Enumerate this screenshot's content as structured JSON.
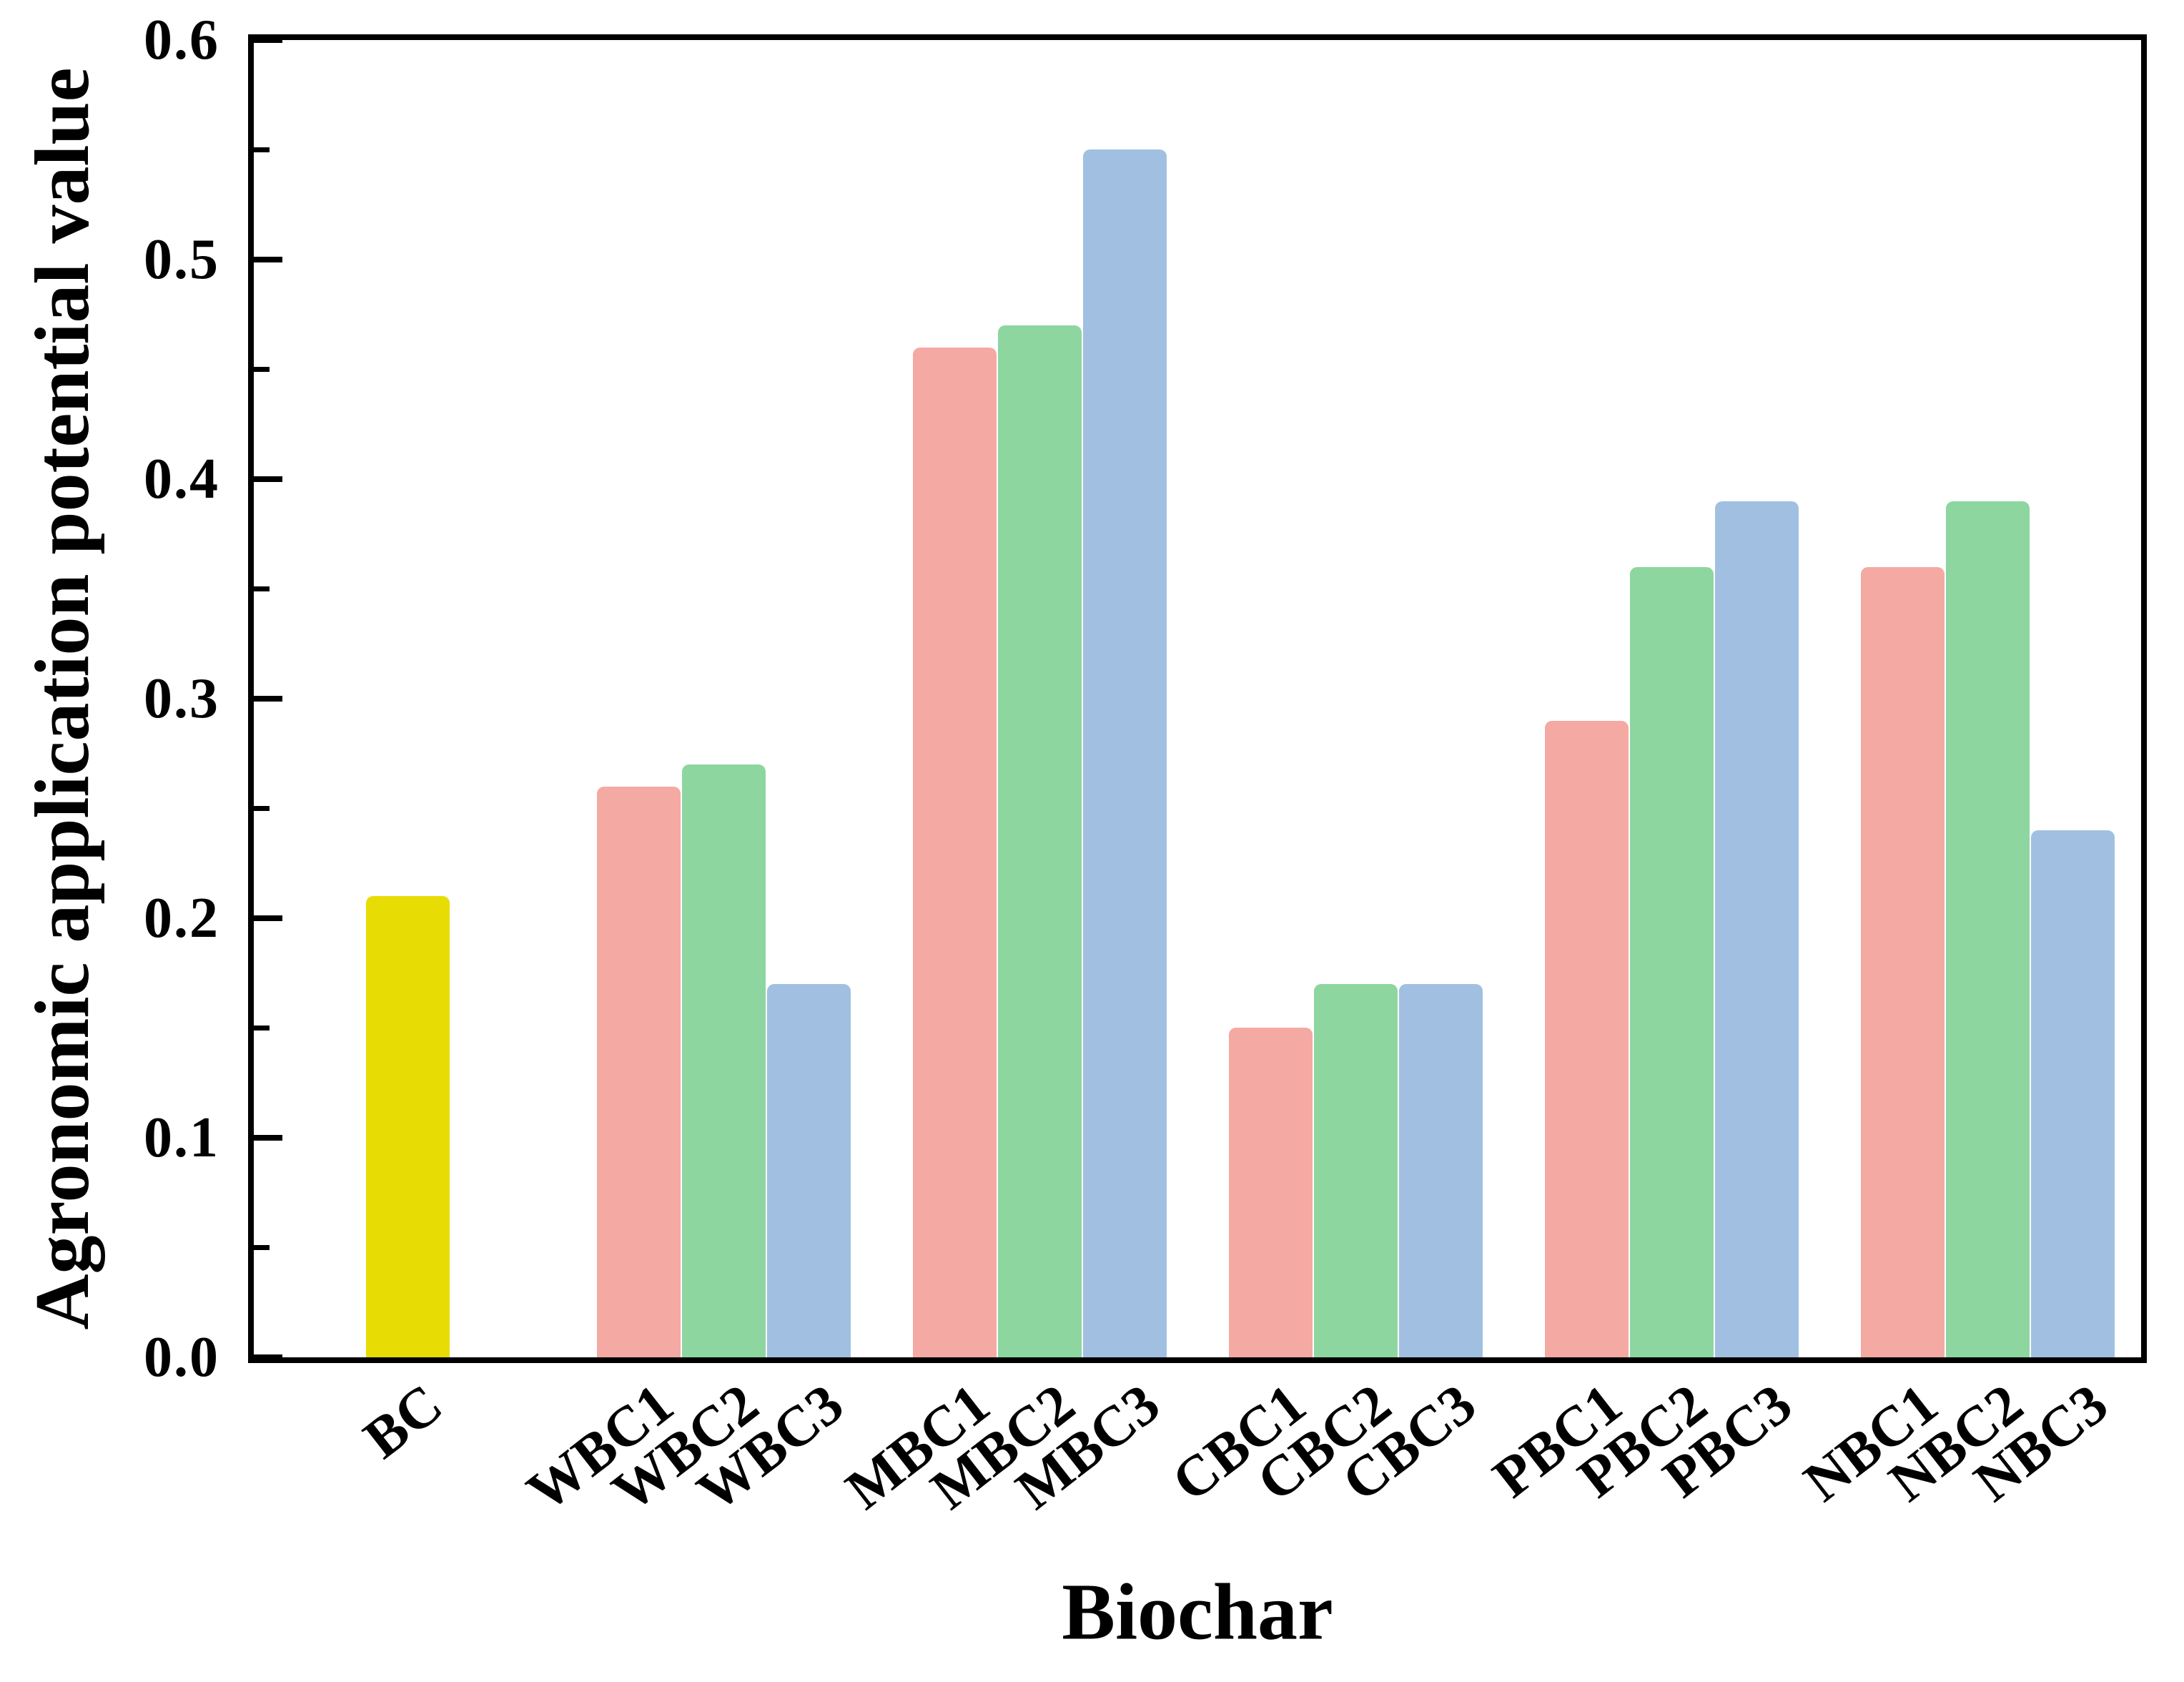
{
  "chart_data": {
    "type": "bar",
    "title": "",
    "xlabel": "Biochar",
    "ylabel": "Agronomic application potential value",
    "ylim": [
      0,
      0.6
    ],
    "ytick_labels": [
      "0.0",
      "0.1",
      "0.2",
      "0.3",
      "0.4",
      "0.5",
      "0.6"
    ],
    "minor_tick_values": [
      0.05,
      0.15,
      0.25,
      0.35,
      0.45,
      0.55
    ],
    "grid": false,
    "legend_position": "none",
    "categories": [
      "BC",
      "WBC1",
      "WBC2",
      "WBC3",
      "MBC1",
      "MBC2",
      "MBC3",
      "CBC1",
      "CBC2",
      "CBC3",
      "PBC1",
      "PBC2",
      "PBC3",
      "NBC1",
      "NBC2",
      "NBC3"
    ],
    "values": [
      0.21,
      0.26,
      0.27,
      0.17,
      0.46,
      0.47,
      0.55,
      0.15,
      0.17,
      0.17,
      0.29,
      0.36,
      0.39,
      0.36,
      0.39,
      0.24
    ],
    "bars": [
      {
        "label": "BC",
        "value": 0.21,
        "color": "#E8DC05",
        "group": 0
      },
      {
        "label": "WBC1",
        "value": 0.26,
        "color": "#F4A9A3",
        "group": 1
      },
      {
        "label": "WBC2",
        "value": 0.27,
        "color": "#8DD6A0",
        "group": 1
      },
      {
        "label": "WBC3",
        "value": 0.17,
        "color": "#A1C0E1",
        "group": 1
      },
      {
        "label": "MBC1",
        "value": 0.46,
        "color": "#F4A9A3",
        "group": 2
      },
      {
        "label": "MBC2",
        "value": 0.47,
        "color": "#8DD6A0",
        "group": 2
      },
      {
        "label": "MBC3",
        "value": 0.55,
        "color": "#A1C0E1",
        "group": 2
      },
      {
        "label": "CBC1",
        "value": 0.15,
        "color": "#F4A9A3",
        "group": 3
      },
      {
        "label": "CBC2",
        "value": 0.17,
        "color": "#8DD6A0",
        "group": 3
      },
      {
        "label": "CBC3",
        "value": 0.17,
        "color": "#A1C0E1",
        "group": 3
      },
      {
        "label": "PBC1",
        "value": 0.29,
        "color": "#F4A9A3",
        "group": 4
      },
      {
        "label": "PBC2",
        "value": 0.36,
        "color": "#8DD6A0",
        "group": 4
      },
      {
        "label": "PBC3",
        "value": 0.39,
        "color": "#A1C0E1",
        "group": 4
      },
      {
        "label": "NBC1",
        "value": 0.36,
        "color": "#F4A9A3",
        "group": 5
      },
      {
        "label": "NBC2",
        "value": 0.39,
        "color": "#8DD6A0",
        "group": 5
      },
      {
        "label": "NBC3",
        "value": 0.24,
        "color": "#A1C0E1",
        "group": 5
      }
    ],
    "series_colors": {
      "control": "#E8DC05",
      "level1": "#F4A9A3",
      "level2": "#8DD6A0",
      "level3": "#A1C0E1"
    },
    "axis_color": "#000000",
    "background_color": "#FFFFFF"
  }
}
